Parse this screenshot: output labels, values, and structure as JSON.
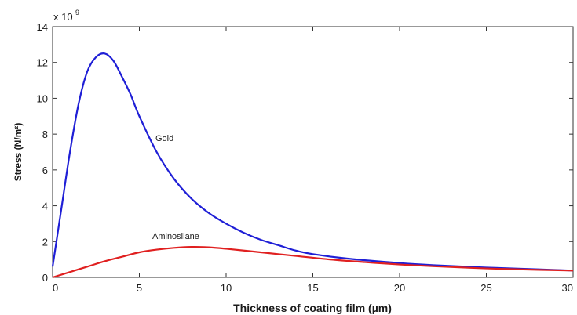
{
  "chart_data": {
    "type": "line",
    "xlabel": "Thickness of coating film (µm)",
    "ylabel": "Stress (N/m²)",
    "y_multiplier_base": "x 10",
    "y_multiplier_exponent": "9",
    "xlim": [
      0,
      30
    ],
    "ylim": [
      0,
      14
    ],
    "x_ticks": [
      0,
      5,
      10,
      15,
      20,
      25,
      30
    ],
    "y_ticks": [
      0,
      2,
      4,
      6,
      8,
      10,
      12,
      14
    ],
    "grid": false,
    "series": [
      {
        "name": "Gold",
        "color": "#1f1fd6",
        "x": [
          0,
          0.5,
          1,
          1.5,
          2,
          2.5,
          3,
          3.5,
          4,
          4.5,
          5,
          6,
          7,
          8,
          9,
          10,
          11,
          12,
          13,
          14,
          15,
          17,
          20,
          22,
          25,
          28,
          30
        ],
        "y": [
          0.6,
          3.8,
          7.0,
          9.7,
          11.5,
          12.3,
          12.5,
          12.1,
          11.2,
          10.2,
          9.0,
          7.0,
          5.5,
          4.4,
          3.6,
          3.0,
          2.5,
          2.1,
          1.8,
          1.5,
          1.3,
          1.05,
          0.8,
          0.68,
          0.55,
          0.45,
          0.38
        ]
      },
      {
        "name": "Aminosilane",
        "color": "#e02020",
        "x": [
          0,
          1,
          2,
          3,
          4,
          5,
          6,
          7,
          8,
          9,
          10,
          12,
          14,
          16,
          18,
          20,
          22,
          25,
          28,
          30
        ],
        "y": [
          0.0,
          0.3,
          0.6,
          0.9,
          1.15,
          1.4,
          1.55,
          1.65,
          1.7,
          1.68,
          1.6,
          1.4,
          1.2,
          1.0,
          0.85,
          0.72,
          0.62,
          0.5,
          0.42,
          0.38
        ]
      }
    ]
  }
}
